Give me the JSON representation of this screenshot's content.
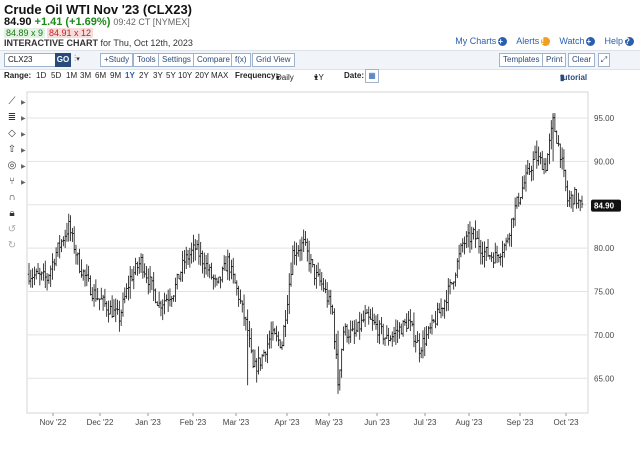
{
  "header": {
    "title": "Crude Oil WTI Nov '23 (CLX23)",
    "last": "84.90",
    "change": "+1.41 (+1.69%)",
    "time": "09:42 CT [NYMEX]",
    "bid": "84.89 x 9",
    "ask": "84.91 x 12",
    "interactive_label": "INTERACTIVE CHART",
    "interactive_date": "for Thu, Oct 12th, 2023"
  },
  "top_links": {
    "my_charts": "My Charts",
    "alerts": "Alerts",
    "watch": "Watch",
    "help": "Help"
  },
  "toolbar": {
    "symbol": "CLX23",
    "go": "GO",
    "study": "+Study",
    "tools": "Tools",
    "settings": "Settings",
    "compare": "Compare",
    "fx": "f(x)",
    "grid_view": "Grid View",
    "templates": "Templates",
    "print": "Print",
    "clear": "Clear"
  },
  "range_bar": {
    "range_label": "Range:",
    "ranges": [
      "1D",
      "5D",
      "1M",
      "3M",
      "6M",
      "9M",
      "1Y",
      "2Y",
      "3Y",
      "5Y",
      "10Y",
      "20Y",
      "MAX"
    ],
    "selected": "1Y",
    "frequency_label": "Frequency:",
    "frequency": "Daily",
    "period": "1Y",
    "date_label": "Date:",
    "tutorial": "tutorial"
  },
  "colors": {
    "accent": "#2a5fb0",
    "up": "#1a8a1a",
    "down": "#bb2222",
    "bars": "#111111",
    "grid": "#e3e3e3"
  },
  "chart_data": {
    "type": "ohlc",
    "ylim": [
      61,
      98
    ],
    "yticks": [
      "65.00",
      "70.00",
      "75.00",
      "80.00",
      "85.00",
      "90.00",
      "95.00"
    ],
    "yticks_values": [
      65,
      70,
      75,
      80,
      85,
      90,
      95
    ],
    "xticks": [
      "Nov '22",
      "Dec '22",
      "Jan '23",
      "Feb '23",
      "Mar '23",
      "Apr '23",
      "May '23",
      "Jun '23",
      "Jul '23",
      "Aug '23",
      "Sep '23",
      "Oct '23"
    ],
    "last_price_label": "84.90",
    "last_price": 84.9,
    "anchors": [
      [
        0,
        77.0
      ],
      [
        10,
        76.5
      ],
      [
        15,
        79.5
      ],
      [
        22,
        82.5
      ],
      [
        28,
        78.0
      ],
      [
        35,
        75.0
      ],
      [
        42,
        73.5
      ],
      [
        50,
        72.0
      ],
      [
        56,
        76.5
      ],
      [
        62,
        78.5
      ],
      [
        67,
        76.0
      ],
      [
        72,
        73.5
      ],
      [
        80,
        75.0
      ],
      [
        86,
        78.5
      ],
      [
        92,
        80.0
      ],
      [
        98,
        78.0
      ],
      [
        104,
        75.5
      ],
      [
        110,
        78.5
      ],
      [
        116,
        74.5
      ],
      [
        121,
        70.5
      ],
      [
        124,
        66.0
      ],
      [
        128,
        67.0
      ],
      [
        134,
        70.0
      ],
      [
        140,
        69.0
      ],
      [
        146,
        79.5
      ],
      [
        152,
        80.5
      ],
      [
        158,
        77.0
      ],
      [
        163,
        75.5
      ],
      [
        168,
        72.5
      ],
      [
        171,
        64.5
      ],
      [
        174,
        70.5
      ],
      [
        180,
        70.0
      ],
      [
        186,
        72.0
      ],
      [
        192,
        71.0
      ],
      [
        198,
        69.5
      ],
      [
        204,
        70.5
      ],
      [
        210,
        71.5
      ],
      [
        216,
        68.5
      ],
      [
        222,
        70.5
      ],
      [
        228,
        73.0
      ],
      [
        234,
        76.0
      ],
      [
        240,
        80.5
      ],
      [
        246,
        81.5
      ],
      [
        252,
        79.5
      ],
      [
        258,
        79.0
      ],
      [
        264,
        80.5
      ],
      [
        268,
        84.0
      ],
      [
        274,
        87.5
      ],
      [
        280,
        90.5
      ],
      [
        286,
        89.5
      ],
      [
        290,
        94.5
      ],
      [
        294,
        91.0
      ],
      [
        298,
        85.5
      ],
      [
        302,
        86.0
      ],
      [
        306,
        84.5
      ]
    ]
  }
}
